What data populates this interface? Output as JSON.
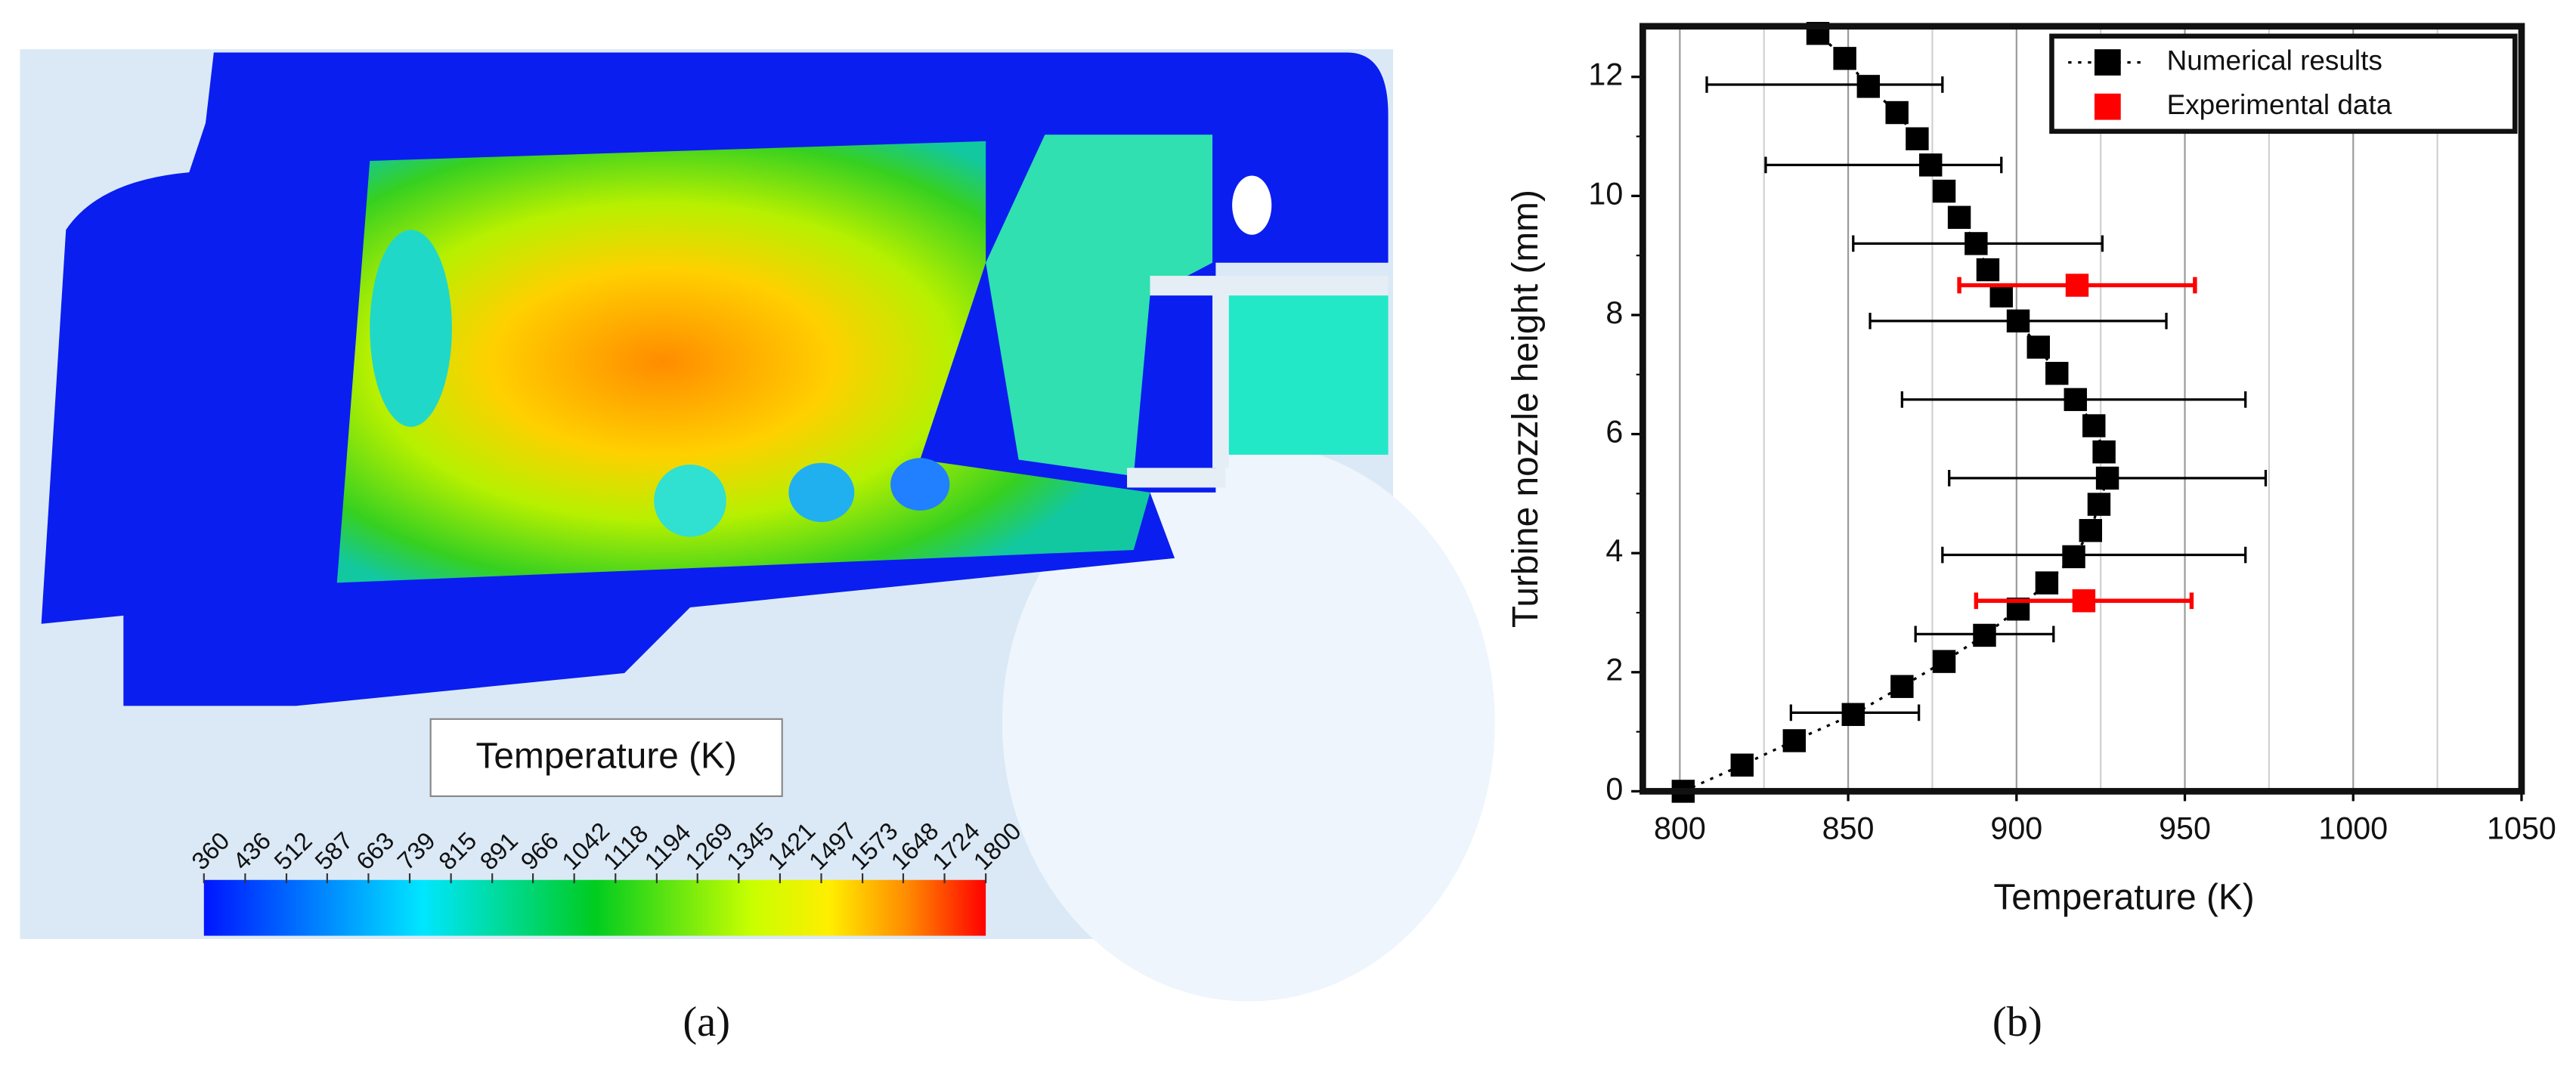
{
  "panel_a": {
    "caption": "(a)",
    "colorbar_title": "Temperature (K)",
    "colorbar_ticks": [
      360,
      436,
      512,
      587,
      663,
      739,
      815,
      891,
      966,
      1042,
      1118,
      1194,
      1269,
      1345,
      1421,
      1497,
      1573,
      1648,
      1724,
      1800
    ]
  },
  "chart_data": {
    "type": "scatter",
    "caption": "(b)",
    "x_label": "Temperature (K)",
    "y_label": "Turbine nozzle height (mm)",
    "xlim": [
      789,
      1050
    ],
    "ylim": [
      0,
      12.85
    ],
    "xticks": [
      800,
      850,
      900,
      950,
      1000,
      1050
    ],
    "yticks": [
      0,
      2,
      4,
      6,
      8,
      10,
      12
    ],
    "x_minor_ticks": [
      825,
      875,
      925,
      975,
      1025
    ],
    "y_minor_ticks": [
      1,
      3,
      5,
      7,
      9,
      11
    ],
    "grid": true,
    "legend": "upper right",
    "series": [
      {
        "name": "Numerical results",
        "color": "#000000",
        "line": "dotted",
        "x": [
          801,
          818.5,
          834,
          851.5,
          866,
          878.5,
          890.5,
          900.5,
          909,
          917,
          922,
          924.5,
          927,
          926,
          923,
          917.5,
          912,
          906.5,
          900.5,
          895.5,
          891.5,
          888,
          883,
          878.5,
          874.5,
          870.5,
          864.5,
          856,
          849,
          841
        ],
        "values": [
          0,
          0.44,
          0.85,
          1.29,
          1.76,
          2.18,
          2.62,
          3.06,
          3.5,
          3.94,
          4.38,
          4.82,
          5.26,
          5.7,
          6.14,
          6.58,
          7.02,
          7.46,
          7.9,
          8.32,
          8.76,
          9.2,
          9.64,
          10.08,
          10.52,
          10.96,
          11.4,
          11.84,
          12.31,
          12.73
        ],
        "error_bars": {
          "x": [
            843,
            860.5,
            888.5,
            900.5,
            917,
            927,
            923,
            890.5,
            852
          ],
          "y": [
            11.87,
            10.52,
            9.2,
            7.9,
            6.58,
            5.26,
            3.97,
            2.64,
            1.32
          ],
          "xerr": [
            35,
            35,
            37,
            44,
            51,
            47,
            45,
            20.5,
            19
          ]
        }
      },
      {
        "name": "Experimental data",
        "color": "#ff0000",
        "x": [
          918,
          920
        ],
        "values": [
          8.5,
          3.2
        ],
        "xerr": [
          35,
          32
        ]
      }
    ]
  }
}
